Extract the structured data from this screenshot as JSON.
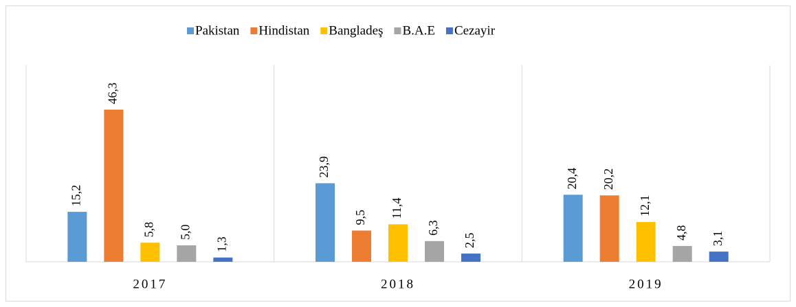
{
  "chart_data": {
    "type": "bar",
    "categories": [
      "2017",
      "2018",
      "2019"
    ],
    "series": [
      {
        "name": "Pakistan",
        "color": "#5b9bd5",
        "values": [
          15.2,
          23.9,
          20.4
        ],
        "value_labels": [
          "15,2",
          "23,9",
          "20,4"
        ]
      },
      {
        "name": "Hindistan",
        "color": "#ed7d31",
        "values": [
          46.3,
          9.5,
          20.2
        ],
        "value_labels": [
          "46,3",
          "9,5",
          "20,2"
        ]
      },
      {
        "name": "Bangladeş",
        "color": "#ffc000",
        "values": [
          5.8,
          11.4,
          12.1
        ],
        "value_labels": [
          "5,8",
          "11,4",
          "12,1"
        ]
      },
      {
        "name": "B.A.E",
        "color": "#a5a5a5",
        "values": [
          5.0,
          6.3,
          4.8
        ],
        "value_labels": [
          "5,0",
          "6,3",
          "4,8"
        ]
      },
      {
        "name": "Cezayir",
        "color": "#4472c4",
        "values": [
          1.3,
          2.5,
          3.1
        ],
        "value_labels": [
          "1,3",
          "2,5",
          "3,1"
        ]
      }
    ],
    "legend": "top"
  }
}
